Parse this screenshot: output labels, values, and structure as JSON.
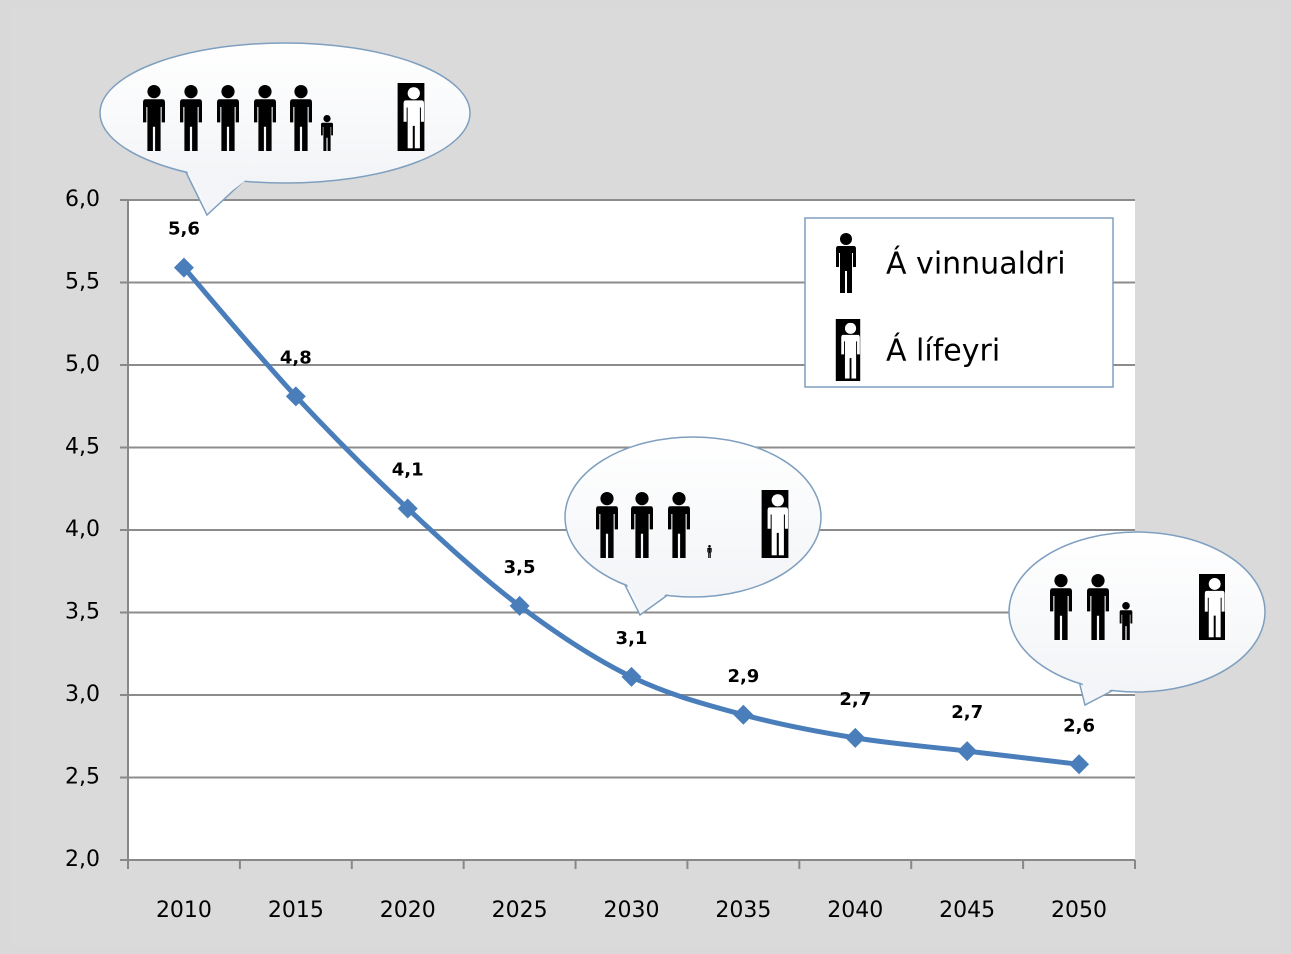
{
  "chart_data": {
    "type": "line",
    "categories": [
      "2010",
      "2015",
      "2020",
      "2025",
      "2030",
      "2035",
      "2040",
      "2045",
      "2050"
    ],
    "values": [
      5.59,
      4.81,
      4.13,
      3.54,
      3.11,
      2.88,
      2.74,
      2.66,
      2.58
    ],
    "value_labels": [
      "5,6",
      "4,8",
      "4,1",
      "3,5",
      "3,1",
      "2,9",
      "2,7",
      "2,7",
      "2,6"
    ],
    "color": "#4a7ebb",
    "ylim": [
      2,
      6
    ],
    "yticks": [
      {
        "value": 2,
        "label": "2,0"
      },
      {
        "value": 2.5,
        "label": "2,5"
      },
      {
        "value": 3,
        "label": "3,0"
      },
      {
        "value": 3.5,
        "label": "3,5"
      },
      {
        "value": 4,
        "label": "4,0"
      },
      {
        "value": 4.5,
        "label": "4,5"
      },
      {
        "value": 5,
        "label": "5,0"
      },
      {
        "value": 5.5,
        "label": "5,5"
      },
      {
        "value": 6,
        "label": "6,0"
      }
    ],
    "grid": true,
    "legend_items": [
      "Á vinnualdri",
      "Á lífeyri"
    ]
  }
}
